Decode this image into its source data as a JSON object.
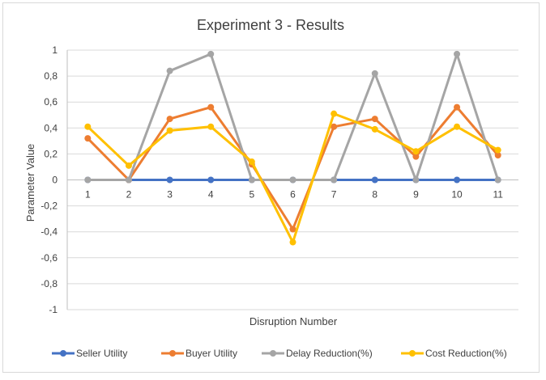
{
  "chart_data": {
    "type": "line",
    "title": "Experiment 3 - Results",
    "xlabel": "Disruption Number",
    "ylabel": "Parameter Value",
    "categories": [
      "1",
      "2",
      "3",
      "4",
      "5",
      "6",
      "7",
      "8",
      "9",
      "10",
      "11"
    ],
    "ylim": [
      -1,
      1
    ],
    "yticks": [
      1,
      0.8,
      0.6,
      0.4,
      0.2,
      0,
      -0.2,
      -0.4,
      -0.6,
      -0.8,
      -1
    ],
    "ytick_labels": [
      "1",
      "0,8",
      "0,6",
      "0,4",
      "0,2",
      "0",
      "-0,2",
      "-0,4",
      "-0,6",
      "-0,8",
      "-1"
    ],
    "grid": true,
    "legend_position": "bottom",
    "series": [
      {
        "name": "Seller Utility",
        "color": "#4472c4",
        "values": [
          0,
          0,
          0,
          0,
          0,
          0,
          0,
          0,
          0,
          0,
          0
        ]
      },
      {
        "name": "Buyer Utility",
        "color": "#ed7d31",
        "values": [
          0.32,
          0,
          0.47,
          0.56,
          0.12,
          -0.38,
          0.41,
          0.47,
          0.18,
          0.56,
          0.19
        ]
      },
      {
        "name": "Delay Reduction(%)",
        "color": "#a5a5a5",
        "values": [
          0,
          0,
          0.84,
          0.97,
          0,
          0,
          0,
          0.82,
          0,
          0.97,
          0
        ]
      },
      {
        "name": "Cost Reduction(%)",
        "color": "#ffc000",
        "values": [
          0.41,
          0.11,
          0.38,
          0.41,
          0.14,
          -0.48,
          0.51,
          0.39,
          0.22,
          0.41,
          0.23
        ]
      }
    ]
  }
}
